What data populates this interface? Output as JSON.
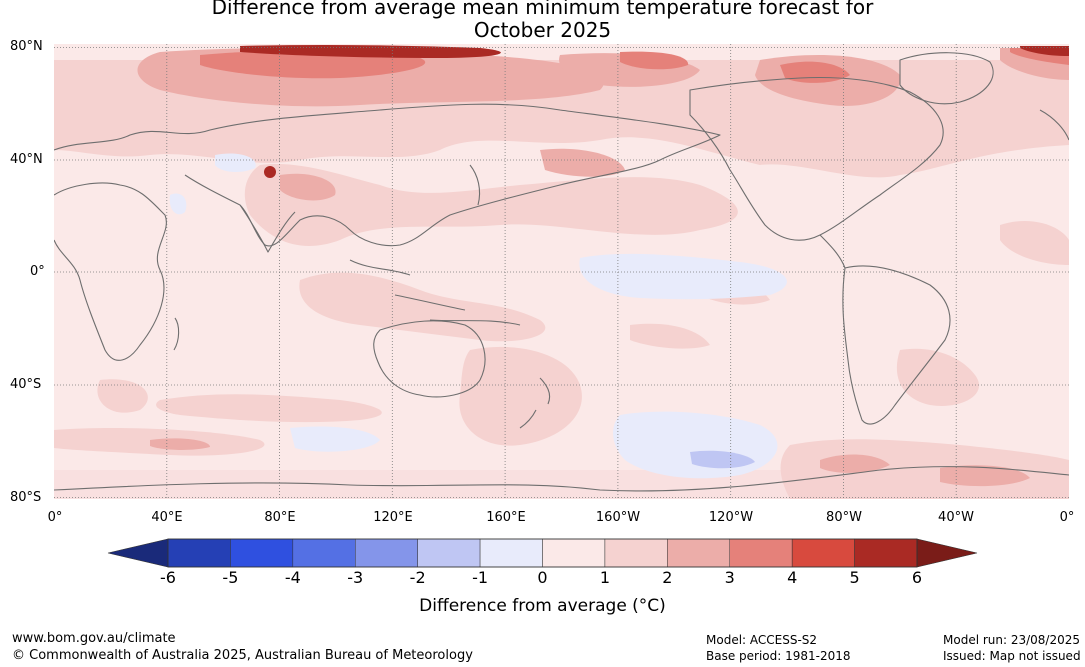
{
  "title": {
    "line1": "Difference from average mean minimum temperature forecast for",
    "line2": "October 2025"
  },
  "map": {
    "lat_labels": [
      "80°N",
      "40°N",
      "0°",
      "40°S",
      "80°S"
    ],
    "lon_labels": [
      "0°",
      "40°E",
      "80°E",
      "120°E",
      "160°E",
      "160°W",
      "120°W",
      "80°W",
      "40°W",
      "0°"
    ],
    "colors": {
      "land_outline": "#6e6e6e",
      "grid": "#7a7a7a"
    }
  },
  "colorbar": {
    "ticks": [
      "-6",
      "-5",
      "-4",
      "-3",
      "-2",
      "-1",
      "0",
      "1",
      "2",
      "3",
      "4",
      "5",
      "6"
    ],
    "colors": {
      "below_min": "#1a2a7a",
      "bins": [
        "#2540b5",
        "#2f50e0",
        "#5470e4",
        "#8495ea",
        "#bfc6f3",
        "#e8ebfb",
        "#fbe9e8",
        "#f5d2d0",
        "#ecada9",
        "#e5817a",
        "#d84a3e",
        "#aa2a24"
      ],
      "above_max": "#7a1c18"
    },
    "label": "Difference from average (°C)"
  },
  "footer": {
    "website": "www.bom.gov.au/climate",
    "copyright": "© Commonwealth of Australia 2025, Australian Bureau of Meteorology",
    "model": "Model: ACCESS-S2",
    "base_period": "Base period: 1981-2018",
    "model_run": "Model run: 23/08/2025",
    "issued": "Issued: Map not issued"
  }
}
